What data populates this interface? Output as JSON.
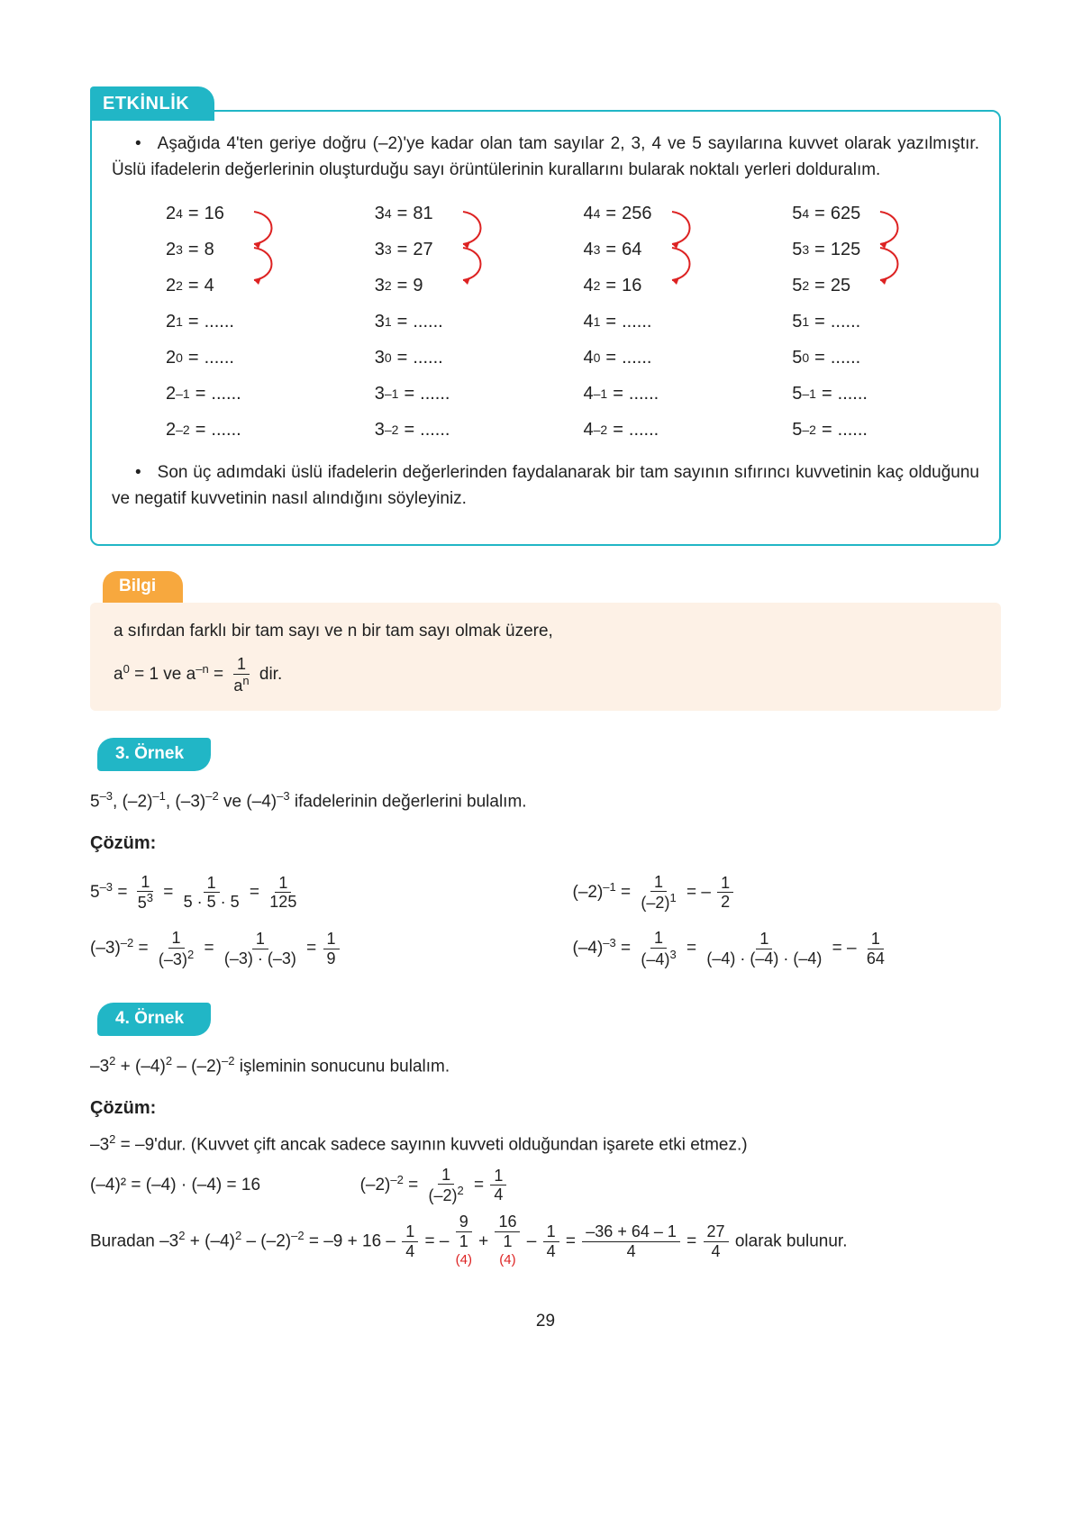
{
  "page_number": "29",
  "etkinlik": {
    "tab": "ETKİNLİK",
    "p1": "Aşağıda 4'ten geriye doğru (–2)'ye kadar olan tam sayılar 2, 3, 4 ve 5 sayılarına kuvvet olarak yazılmıştır. Üslü ifadelerin değerlerinin oluşturduğu sayı örüntülerinin kurallarını bularak noktalı yerleri dolduralım.",
    "p2": "Son üç adımdaki üslü ifadelerin değerlerinden faydalanarak bir tam sayının sıfırıncı kuvvetinin kaç olduğunu ve negatif kuvvetinin nasıl alındığını söyleyiniz.",
    "arrow_color": "#d22",
    "columns": [
      {
        "base": "2",
        "rows": [
          {
            "exp": "4",
            "val": "16"
          },
          {
            "exp": "3",
            "val": "8"
          },
          {
            "exp": "2",
            "val": "4"
          },
          {
            "exp": "1",
            "val": "......"
          },
          {
            "exp": "0",
            "val": "......"
          },
          {
            "exp": "–1",
            "val": "......"
          },
          {
            "exp": "–2",
            "val": "......"
          }
        ]
      },
      {
        "base": "3",
        "rows": [
          {
            "exp": "4",
            "val": "81"
          },
          {
            "exp": "3",
            "val": "27"
          },
          {
            "exp": "2",
            "val": "9"
          },
          {
            "exp": "1",
            "val": "......"
          },
          {
            "exp": "0",
            "val": "......"
          },
          {
            "exp": "–1",
            "val": "......"
          },
          {
            "exp": "–2",
            "val": "......"
          }
        ]
      },
      {
        "base": "4",
        "rows": [
          {
            "exp": "4",
            "val": "256"
          },
          {
            "exp": "3",
            "val": "64"
          },
          {
            "exp": "2",
            "val": "16"
          },
          {
            "exp": "1",
            "val": "......"
          },
          {
            "exp": "0",
            "val": "......"
          },
          {
            "exp": "–1",
            "val": "......"
          },
          {
            "exp": "–2",
            "val": "......"
          }
        ]
      },
      {
        "base": "5",
        "rows": [
          {
            "exp": "4",
            "val": "625"
          },
          {
            "exp": "3",
            "val": "125"
          },
          {
            "exp": "2",
            "val": "25"
          },
          {
            "exp": "1",
            "val": "......"
          },
          {
            "exp": "0",
            "val": "......"
          },
          {
            "exp": "–1",
            "val": "......"
          },
          {
            "exp": "–2",
            "val": "......"
          }
        ]
      }
    ]
  },
  "bilgi": {
    "tab": "Bilgi",
    "line1": "a sıfırdan farklı bir tam sayı ve n bir tam sayı olmak üzere,",
    "eq_prefix": "a",
    "eq_exp0": "0",
    "eq_eq1": " = 1 ve a",
    "eq_expneg": "–n",
    "eq_eq2": " = ",
    "frac_num": "1",
    "frac_den_base": "a",
    "frac_den_exp": "n",
    "eq_suffix": " dir."
  },
  "ornek3": {
    "tab": "3. Örnek",
    "prompt": "5⁻³, (–2)⁻¹, (–3)⁻² ve (–4)⁻³ ifadelerinin değerlerini bulalım.",
    "cozum": "Çözüm:"
  },
  "ornek4": {
    "tab": "4. Örnek",
    "prompt": "–3² + (–4)² – (–2)⁻² işleminin sonucunu bulalım.",
    "cozum": "Çözüm:",
    "line1": "–3² = –9'dur. (Kuvvet çift ancak sadece sayının kuvveti olduğundan işarete etki etmez.)",
    "line2a": "(–4)² = (–4) · (–4) = 16",
    "final_suffix": " olarak bulunur.",
    "red_note": "(4)"
  },
  "colors": {
    "teal": "#21b6c6",
    "orange": "#f7a83e",
    "bilgi_bg": "#fdf1e6",
    "red": "#d22",
    "text": "#212121",
    "bg": "#ffffff"
  }
}
